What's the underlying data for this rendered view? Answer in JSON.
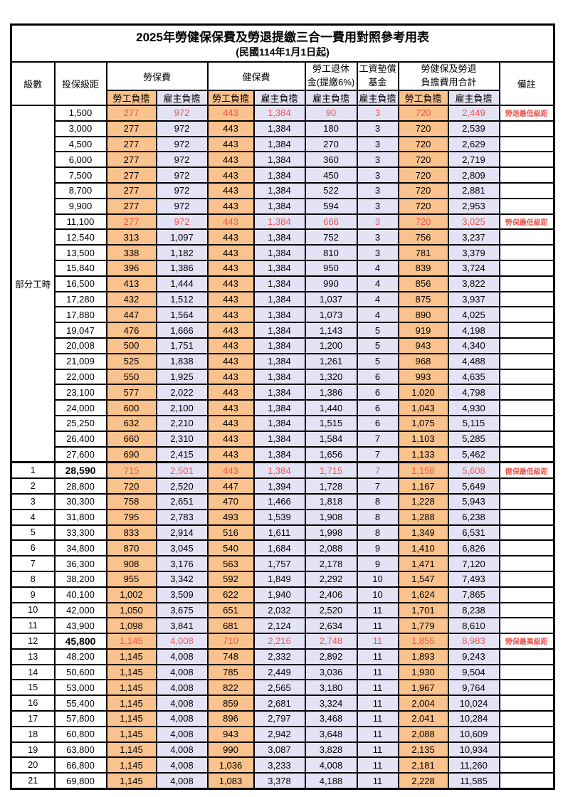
{
  "title": "2025年勞健保保費及勞退提繳三合一費用對照參考用表",
  "subtitle": "(民國114年1月1日起)",
  "colors": {
    "employee_col_bg": "#fac28c",
    "employer_col_bg": "#e3e3f5",
    "highlight_red": "#f0564e",
    "border": "#000000"
  },
  "header": {
    "level": "級數",
    "bracket": "投保級距",
    "labor_insurance": "勞保費",
    "health_insurance": "健保費",
    "pension_line1": "勞工退休",
    "pension_line2": "金(提繳6%)",
    "wage_fund_line1": "工資墊償",
    "wage_fund_line2": "基金",
    "total_line1": "勞健保及勞退",
    "total_line2": "負擔費用合計",
    "remark": "備註",
    "employee": "勞工負擔",
    "employer": "雇主負擔"
  },
  "part_time_label": "部分工時",
  "part_time_span": 23,
  "rows": [
    {
      "level": "",
      "bracket": "1,500",
      "values": [
        "277",
        "972",
        "443",
        "1,384",
        "90",
        "3",
        "720",
        "2,449"
      ],
      "remark": "勞退最低級距",
      "red": true,
      "bold_bracket": false,
      "thick_top": false
    },
    {
      "level": "",
      "bracket": "3,000",
      "values": [
        "277",
        "972",
        "443",
        "1,384",
        "180",
        "3",
        "720",
        "2,539"
      ],
      "remark": "",
      "red": false,
      "bold_bracket": false,
      "thick_top": false
    },
    {
      "level": "",
      "bracket": "4,500",
      "values": [
        "277",
        "972",
        "443",
        "1,384",
        "270",
        "3",
        "720",
        "2,629"
      ],
      "remark": "",
      "red": false,
      "bold_bracket": false,
      "thick_top": false
    },
    {
      "level": "",
      "bracket": "6,000",
      "values": [
        "277",
        "972",
        "443",
        "1,384",
        "360",
        "3",
        "720",
        "2,719"
      ],
      "remark": "",
      "red": false,
      "bold_bracket": false,
      "thick_top": false
    },
    {
      "level": "",
      "bracket": "7,500",
      "values": [
        "277",
        "972",
        "443",
        "1,384",
        "450",
        "3",
        "720",
        "2,809"
      ],
      "remark": "",
      "red": false,
      "bold_bracket": false,
      "thick_top": false
    },
    {
      "level": "",
      "bracket": "8,700",
      "values": [
        "277",
        "972",
        "443",
        "1,384",
        "522",
        "3",
        "720",
        "2,881"
      ],
      "remark": "",
      "red": false,
      "bold_bracket": false,
      "thick_top": false
    },
    {
      "level": "",
      "bracket": "9,900",
      "values": [
        "277",
        "972",
        "443",
        "1,384",
        "594",
        "3",
        "720",
        "2,953"
      ],
      "remark": "",
      "red": false,
      "bold_bracket": false,
      "thick_top": false
    },
    {
      "level": "",
      "bracket": "11,100",
      "values": [
        "277",
        "972",
        "443",
        "1,384",
        "666",
        "3",
        "720",
        "3,025"
      ],
      "remark": "勞保最低級距",
      "red": true,
      "bold_bracket": false,
      "thick_top": false
    },
    {
      "level": "",
      "bracket": "12,540",
      "values": [
        "313",
        "1,097",
        "443",
        "1,384",
        "752",
        "3",
        "756",
        "3,237"
      ],
      "remark": "",
      "red": false,
      "bold_bracket": false,
      "thick_top": false
    },
    {
      "level": "",
      "bracket": "13,500",
      "values": [
        "338",
        "1,182",
        "443",
        "1,384",
        "810",
        "3",
        "781",
        "3,379"
      ],
      "remark": "",
      "red": false,
      "bold_bracket": false,
      "thick_top": false
    },
    {
      "level": "",
      "bracket": "15,840",
      "values": [
        "396",
        "1,386",
        "443",
        "1,384",
        "950",
        "4",
        "839",
        "3,724"
      ],
      "remark": "",
      "red": false,
      "bold_bracket": false,
      "thick_top": false
    },
    {
      "level": "",
      "bracket": "16,500",
      "values": [
        "413",
        "1,444",
        "443",
        "1,384",
        "990",
        "4",
        "856",
        "3,822"
      ],
      "remark": "",
      "red": false,
      "bold_bracket": false,
      "thick_top": false
    },
    {
      "level": "",
      "bracket": "17,280",
      "values": [
        "432",
        "1,512",
        "443",
        "1,384",
        "1,037",
        "4",
        "875",
        "3,937"
      ],
      "remark": "",
      "red": false,
      "bold_bracket": false,
      "thick_top": false
    },
    {
      "level": "",
      "bracket": "17,880",
      "values": [
        "447",
        "1,564",
        "443",
        "1,384",
        "1,073",
        "4",
        "890",
        "4,025"
      ],
      "remark": "",
      "red": false,
      "bold_bracket": false,
      "thick_top": false
    },
    {
      "level": "",
      "bracket": "19,047",
      "values": [
        "476",
        "1,666",
        "443",
        "1,384",
        "1,143",
        "5",
        "919",
        "4,198"
      ],
      "remark": "",
      "red": false,
      "bold_bracket": false,
      "thick_top": false
    },
    {
      "level": "",
      "bracket": "20,008",
      "values": [
        "500",
        "1,751",
        "443",
        "1,384",
        "1,200",
        "5",
        "943",
        "4,340"
      ],
      "remark": "",
      "red": false,
      "bold_bracket": false,
      "thick_top": false
    },
    {
      "level": "",
      "bracket": "21,009",
      "values": [
        "525",
        "1,838",
        "443",
        "1,384",
        "1,261",
        "5",
        "968",
        "4,488"
      ],
      "remark": "",
      "red": false,
      "bold_bracket": false,
      "thick_top": false
    },
    {
      "level": "",
      "bracket": "22,000",
      "values": [
        "550",
        "1,925",
        "443",
        "1,384",
        "1,320",
        "6",
        "993",
        "4,635"
      ],
      "remark": "",
      "red": false,
      "bold_bracket": false,
      "thick_top": false
    },
    {
      "level": "",
      "bracket": "23,100",
      "values": [
        "577",
        "2,022",
        "443",
        "1,384",
        "1,386",
        "6",
        "1,020",
        "4,798"
      ],
      "remark": "",
      "red": false,
      "bold_bracket": false,
      "thick_top": false
    },
    {
      "level": "",
      "bracket": "24,000",
      "values": [
        "600",
        "2,100",
        "443",
        "1,384",
        "1,440",
        "6",
        "1,043",
        "4,930"
      ],
      "remark": "",
      "red": false,
      "bold_bracket": false,
      "thick_top": false
    },
    {
      "level": "",
      "bracket": "25,250",
      "values": [
        "632",
        "2,210",
        "443",
        "1,384",
        "1,515",
        "6",
        "1,075",
        "5,115"
      ],
      "remark": "",
      "red": false,
      "bold_bracket": false,
      "thick_top": false
    },
    {
      "level": "",
      "bracket": "26,400",
      "values": [
        "660",
        "2,310",
        "443",
        "1,384",
        "1,584",
        "7",
        "1,103",
        "5,285"
      ],
      "remark": "",
      "red": false,
      "bold_bracket": false,
      "thick_top": false
    },
    {
      "level": "",
      "bracket": "27,600",
      "values": [
        "690",
        "2,415",
        "443",
        "1,384",
        "1,656",
        "7",
        "1,133",
        "5,462"
      ],
      "remark": "",
      "red": false,
      "bold_bracket": false,
      "thick_top": false
    },
    {
      "level": "1",
      "bracket": "28,590",
      "values": [
        "715",
        "2,501",
        "443",
        "1,384",
        "1,715",
        "7",
        "1,158",
        "5,608"
      ],
      "remark": "健保最低級距",
      "red": true,
      "bold_bracket": true,
      "thick_top": true
    },
    {
      "level": "2",
      "bracket": "28,800",
      "values": [
        "720",
        "2,520",
        "447",
        "1,394",
        "1,728",
        "7",
        "1,167",
        "5,649"
      ],
      "remark": "",
      "red": false,
      "bold_bracket": false,
      "thick_top": false
    },
    {
      "level": "3",
      "bracket": "30,300",
      "values": [
        "758",
        "2,651",
        "470",
        "1,466",
        "1,818",
        "8",
        "1,228",
        "5,943"
      ],
      "remark": "",
      "red": false,
      "bold_bracket": false,
      "thick_top": false
    },
    {
      "level": "4",
      "bracket": "31,800",
      "values": [
        "795",
        "2,783",
        "493",
        "1,539",
        "1,908",
        "8",
        "1,288",
        "6,238"
      ],
      "remark": "",
      "red": false,
      "bold_bracket": false,
      "thick_top": false
    },
    {
      "level": "5",
      "bracket": "33,300",
      "values": [
        "833",
        "2,914",
        "516",
        "1,611",
        "1,998",
        "8",
        "1,349",
        "6,531"
      ],
      "remark": "",
      "red": false,
      "bold_bracket": false,
      "thick_top": false
    },
    {
      "level": "6",
      "bracket": "34,800",
      "values": [
        "870",
        "3,045",
        "540",
        "1,684",
        "2,088",
        "9",
        "1,410",
        "6,826"
      ],
      "remark": "",
      "red": false,
      "bold_bracket": false,
      "thick_top": false
    },
    {
      "level": "7",
      "bracket": "36,300",
      "values": [
        "908",
        "3,176",
        "563",
        "1,757",
        "2,178",
        "9",
        "1,471",
        "7,120"
      ],
      "remark": "",
      "red": false,
      "bold_bracket": false,
      "thick_top": false
    },
    {
      "level": "8",
      "bracket": "38,200",
      "values": [
        "955",
        "3,342",
        "592",
        "1,849",
        "2,292",
        "10",
        "1,547",
        "7,493"
      ],
      "remark": "",
      "red": false,
      "bold_bracket": false,
      "thick_top": false
    },
    {
      "level": "9",
      "bracket": "40,100",
      "values": [
        "1,002",
        "3,509",
        "622",
        "1,940",
        "2,406",
        "10",
        "1,624",
        "7,865"
      ],
      "remark": "",
      "red": false,
      "bold_bracket": false,
      "thick_top": false
    },
    {
      "level": "10",
      "bracket": "42,000",
      "values": [
        "1,050",
        "3,675",
        "651",
        "2,032",
        "2,520",
        "11",
        "1,701",
        "8,238"
      ],
      "remark": "",
      "red": false,
      "bold_bracket": false,
      "thick_top": false
    },
    {
      "level": "11",
      "bracket": "43,900",
      "values": [
        "1,098",
        "3,841",
        "681",
        "2,124",
        "2,634",
        "11",
        "1,779",
        "8,610"
      ],
      "remark": "",
      "red": false,
      "bold_bracket": false,
      "thick_top": false
    },
    {
      "level": "12",
      "bracket": "45,800",
      "values": [
        "1,145",
        "4,008",
        "710",
        "2,216",
        "2,748",
        "11",
        "1,855",
        "8,983"
      ],
      "remark": "勞保最高級距",
      "red": true,
      "bold_bracket": true,
      "thick_top": false
    },
    {
      "level": "13",
      "bracket": "48,200",
      "values": [
        "1,145",
        "4,008",
        "748",
        "2,332",
        "2,892",
        "11",
        "1,893",
        "9,243"
      ],
      "remark": "",
      "red": false,
      "bold_bracket": false,
      "thick_top": false
    },
    {
      "level": "14",
      "bracket": "50,600",
      "values": [
        "1,145",
        "4,008",
        "785",
        "2,449",
        "3,036",
        "11",
        "1,930",
        "9,504"
      ],
      "remark": "",
      "red": false,
      "bold_bracket": false,
      "thick_top": false
    },
    {
      "level": "15",
      "bracket": "53,000",
      "values": [
        "1,145",
        "4,008",
        "822",
        "2,565",
        "3,180",
        "11",
        "1,967",
        "9,764"
      ],
      "remark": "",
      "red": false,
      "bold_bracket": false,
      "thick_top": false
    },
    {
      "level": "16",
      "bracket": "55,400",
      "values": [
        "1,145",
        "4,008",
        "859",
        "2,681",
        "3,324",
        "11",
        "2,004",
        "10,024"
      ],
      "remark": "",
      "red": false,
      "bold_bracket": false,
      "thick_top": false
    },
    {
      "level": "17",
      "bracket": "57,800",
      "values": [
        "1,145",
        "4,008",
        "896",
        "2,797",
        "3,468",
        "11",
        "2,041",
        "10,284"
      ],
      "remark": "",
      "red": false,
      "bold_bracket": false,
      "thick_top": false
    },
    {
      "level": "18",
      "bracket": "60,800",
      "values": [
        "1,145",
        "4,008",
        "943",
        "2,942",
        "3,648",
        "11",
        "2,088",
        "10,609"
      ],
      "remark": "",
      "red": false,
      "bold_bracket": false,
      "thick_top": false
    },
    {
      "level": "19",
      "bracket": "63,800",
      "values": [
        "1,145",
        "4,008",
        "990",
        "3,087",
        "3,828",
        "11",
        "2,135",
        "10,934"
      ],
      "remark": "",
      "red": false,
      "bold_bracket": false,
      "thick_top": false
    },
    {
      "level": "20",
      "bracket": "66,800",
      "values": [
        "1,145",
        "4,008",
        "1,036",
        "3,233",
        "4,008",
        "11",
        "2,181",
        "11,260"
      ],
      "remark": "",
      "red": false,
      "bold_bracket": false,
      "thick_top": false
    },
    {
      "level": "21",
      "bracket": "69,800",
      "values": [
        "1,145",
        "4,008",
        "1,083",
        "3,378",
        "4,188",
        "11",
        "2,228",
        "11,585"
      ],
      "remark": "",
      "red": false,
      "bold_bracket": false,
      "thick_top": false
    }
  ],
  "value_column_kinds": [
    "emp",
    "er",
    "emp",
    "er",
    "er",
    "er",
    "emp",
    "er"
  ]
}
